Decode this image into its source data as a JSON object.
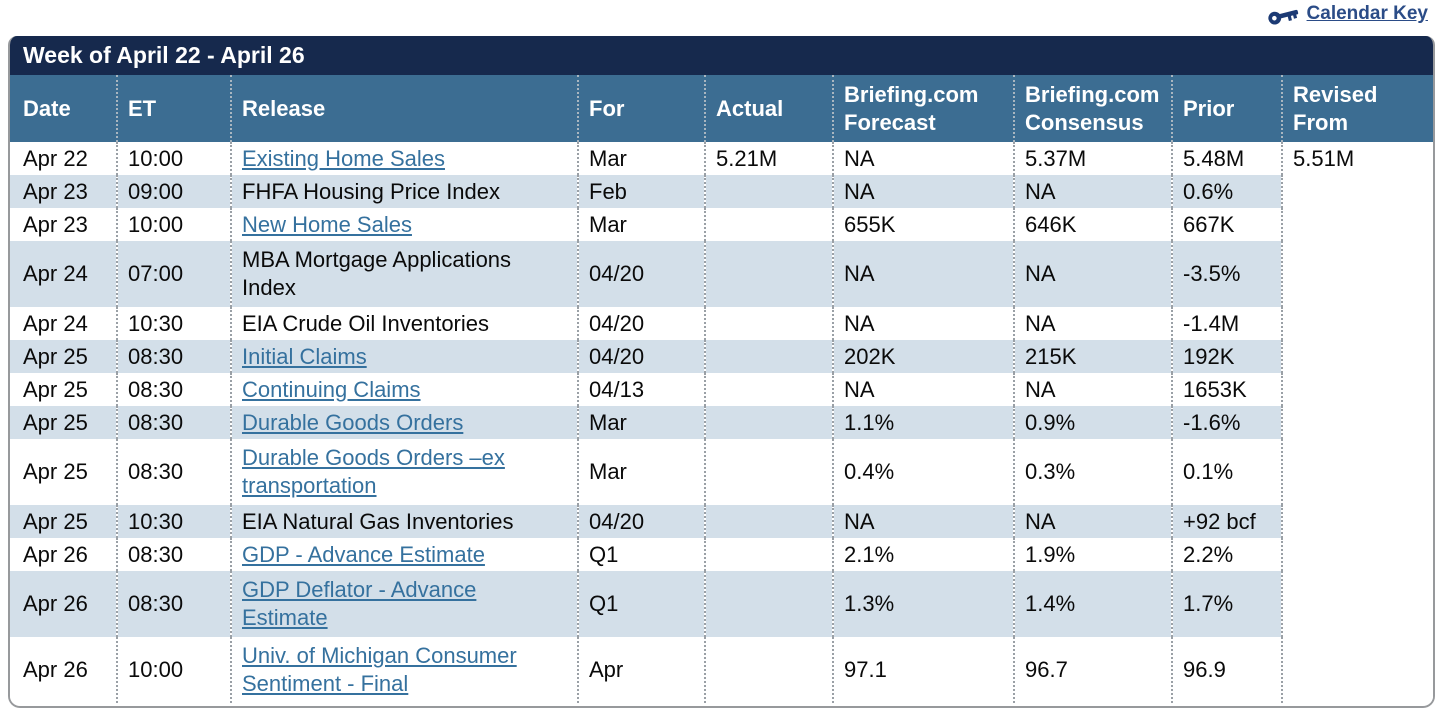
{
  "calendar_key": {
    "label": "Calendar Key"
  },
  "table": {
    "title": "Week of April 22 - April 26",
    "columns": [
      "Date",
      "ET",
      "Release",
      "For",
      "Actual",
      "Briefing.com\nForecast",
      "Briefing.com\nConsensus",
      "Prior",
      "Revised\nFrom"
    ],
    "rows": [
      {
        "date": "Apr 22",
        "et": "10:00",
        "release": "Existing Home Sales",
        "link": true,
        "for": "Mar",
        "actual": "5.21M",
        "forecast": "NA",
        "consensus": "5.37M",
        "prior": "5.48M",
        "revised": "5.51M"
      },
      {
        "date": "Apr 23",
        "et": "09:00",
        "release": "FHFA Housing Price Index",
        "link": false,
        "for": "Feb",
        "actual": "",
        "forecast": "NA",
        "consensus": "NA",
        "prior": "0.6%",
        "revised": ""
      },
      {
        "date": "Apr 23",
        "et": "10:00",
        "release": "New Home Sales",
        "link": true,
        "for": "Mar",
        "actual": "",
        "forecast": "655K",
        "consensus": "646K",
        "prior": "667K",
        "revised": ""
      },
      {
        "date": "Apr 24",
        "et": "07:00",
        "release": "MBA Mortgage Applications\nIndex",
        "link": false,
        "for": "04/20",
        "actual": "",
        "forecast": "NA",
        "consensus": "NA",
        "prior": "-3.5%",
        "revised": ""
      },
      {
        "date": "Apr 24",
        "et": "10:30",
        "release": "EIA Crude Oil Inventories",
        "link": false,
        "for": "04/20",
        "actual": "",
        "forecast": "NA",
        "consensus": "NA",
        "prior": "-1.4M",
        "revised": ""
      },
      {
        "date": "Apr 25",
        "et": "08:30",
        "release": "Initial Claims",
        "link": true,
        "for": "04/20",
        "actual": "",
        "forecast": "202K",
        "consensus": "215K",
        "prior": "192K",
        "revised": ""
      },
      {
        "date": "Apr 25",
        "et": "08:30",
        "release": "Continuing Claims",
        "link": true,
        "for": "04/13",
        "actual": "",
        "forecast": "NA",
        "consensus": "NA",
        "prior": "1653K",
        "revised": ""
      },
      {
        "date": "Apr 25",
        "et": "08:30",
        "release": "Durable Goods Orders",
        "link": true,
        "for": "Mar",
        "actual": "",
        "forecast": "1.1%",
        "consensus": "0.9%",
        "prior": "-1.6%",
        "revised": ""
      },
      {
        "date": "Apr 25",
        "et": "08:30",
        "release": "Durable Goods Orders –ex\ntransportation",
        "link": true,
        "for": "Mar",
        "actual": "",
        "forecast": "0.4%",
        "consensus": "0.3%",
        "prior": "0.1%",
        "revised": ""
      },
      {
        "date": "Apr 25",
        "et": "10:30",
        "release": "EIA Natural Gas Inventories",
        "link": false,
        "for": "04/20",
        "actual": "",
        "forecast": "NA",
        "consensus": "NA",
        "prior": "+92 bcf",
        "revised": ""
      },
      {
        "date": "Apr 26",
        "et": "08:30",
        "release": "GDP - Advance Estimate",
        "link": true,
        "for": "Q1",
        "actual": "",
        "forecast": "2.1%",
        "consensus": "1.9%",
        "prior": "2.2%",
        "revised": ""
      },
      {
        "date": "Apr 26",
        "et": "08:30",
        "release": "GDP Deflator - Advance\nEstimate",
        "link": true,
        "for": "Q1",
        "actual": "",
        "forecast": "1.3%",
        "consensus": "1.4%",
        "prior": "1.7%",
        "revised": ""
      },
      {
        "date": "Apr 26",
        "et": "10:00",
        "release": "Univ. of Michigan Consumer\nSentiment - Final",
        "link": true,
        "for": "Apr",
        "actual": "",
        "forecast": "97.1",
        "consensus": "96.7",
        "prior": "96.9",
        "revised": ""
      }
    ]
  },
  "colors": {
    "title_navy": "#16294d",
    "header_blue": "#3c6d92",
    "row_shaded": "#d3dfe9",
    "release_link": "#35719e",
    "calendar_key_link": "#2b4c87",
    "key_icon": "#1c3a74"
  }
}
